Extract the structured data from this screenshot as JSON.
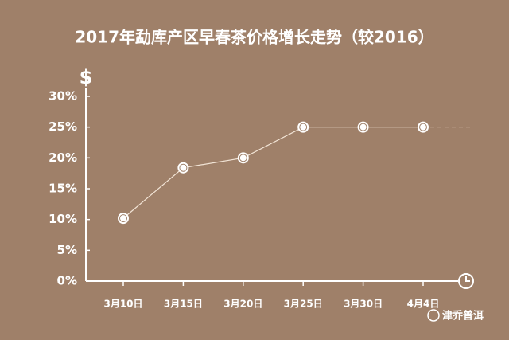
{
  "chart_data": {
    "type": "line",
    "title": "2017年勐库产区早春茶价格增长走势（较2016）",
    "y_axis_label": "$",
    "categories": [
      "3月10日",
      "3月15日",
      "3月20日",
      "3月25日",
      "3月30日",
      "4月4日"
    ],
    "values": [
      10.2,
      18.4,
      20,
      25,
      25,
      25
    ],
    "color": "#f2e4d6",
    "ylim": [
      0,
      30
    ],
    "yticks": [
      {
        "value": 0,
        "label": "0%"
      },
      {
        "value": 5,
        "label": "5%"
      },
      {
        "value": 10,
        "label": "10%"
      },
      {
        "value": 15,
        "label": "15%"
      },
      {
        "value": 20,
        "label": "20%"
      },
      {
        "value": 25,
        "label": "25%"
      },
      {
        "value": 30,
        "label": "30%"
      }
    ],
    "watermark": "津乔普洱"
  }
}
